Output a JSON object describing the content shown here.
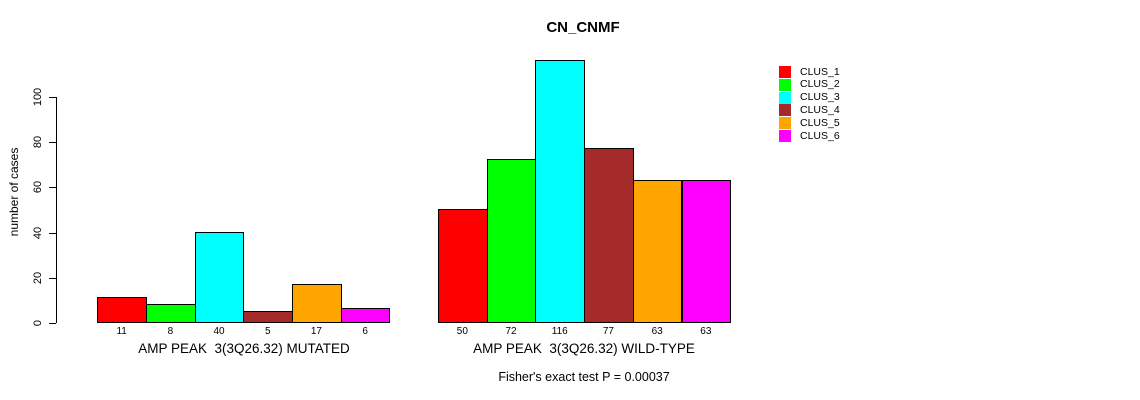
{
  "chart_data": {
    "type": "bar",
    "title": "CN_CNMF",
    "ylabel": "number of cases",
    "ylim": [
      0,
      100
    ],
    "yticks": [
      0,
      20,
      40,
      60,
      80,
      100
    ],
    "grid": false,
    "legend_position": "right",
    "legend": [
      {
        "label": "CLUS_1",
        "color": "#FF0000"
      },
      {
        "label": "CLUS_2",
        "color": "#00FF00"
      },
      {
        "label": "CLUS_3",
        "color": "#00FFFF"
      },
      {
        "label": "CLUS_4",
        "color": "#A52A2A"
      },
      {
        "label": "CLUS_5",
        "color": "#FFA500"
      },
      {
        "label": "CLUS_6",
        "color": "#FF00FF"
      }
    ],
    "series_colors": [
      "#FF0000",
      "#00FF00",
      "#00FFFF",
      "#A52A2A",
      "#FFA500",
      "#FF00FF"
    ],
    "groups": [
      {
        "xlabel": "AMP PEAK  3(3Q26.32) MUTATED",
        "bar_labels": [
          "11",
          "8",
          "40",
          "5",
          "17",
          "6"
        ],
        "values": [
          11,
          8,
          40,
          5,
          17,
          6
        ]
      },
      {
        "xlabel": "AMP PEAK  3(3Q26.32) WILD-TYPE",
        "bar_labels": [
          "50",
          "72",
          "116",
          "77",
          "63",
          "63"
        ],
        "values": [
          50,
          72,
          116,
          77,
          63,
          63
        ]
      }
    ],
    "footnote": "Fisher's exact test P = 0.00037",
    "axis_color": "#000000",
    "text_color": "#000000"
  }
}
